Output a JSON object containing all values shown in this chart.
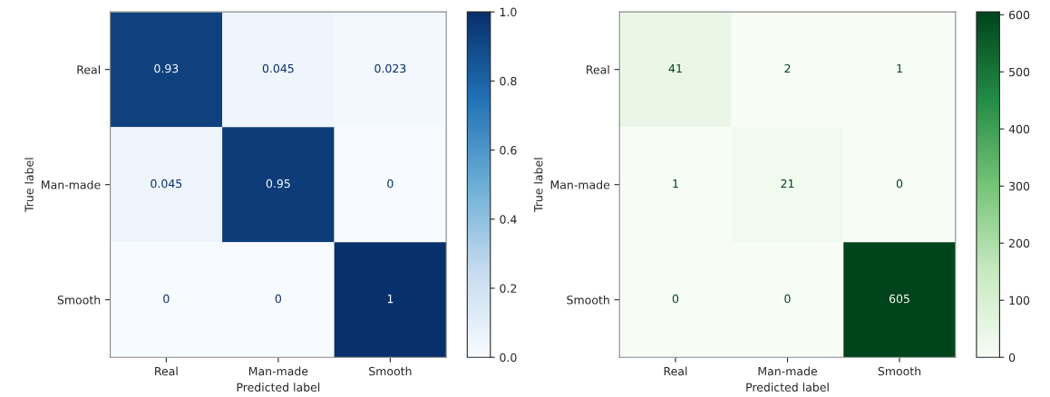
{
  "chart_data": [
    {
      "type": "heatmap",
      "xlabel": "Predicted label",
      "ylabel": "True label",
      "categories": [
        "Real",
        "Man-made",
        "Smooth"
      ],
      "y_categories": [
        "Real",
        "Man-made",
        "Smooth"
      ],
      "cells": [
        [
          0.93,
          0.045,
          0.023
        ],
        [
          0.045,
          0.95,
          0
        ],
        [
          0,
          0,
          1
        ]
      ],
      "data_labels": true,
      "colors": [
        "#f7fbff",
        "#c6dbef",
        "#6baed6",
        "#2171b5",
        "#08306b"
      ],
      "clim": [
        0,
        1
      ],
      "cticks": [
        {
          "value": 0,
          "label": "0.0"
        },
        0.2,
        0.4,
        0.6,
        0.8,
        {
          "value": 1,
          "label": "1.0"
        }
      ]
    },
    {
      "type": "heatmap",
      "xlabel": "Predicted label",
      "ylabel": "True label",
      "categories": [
        "Real",
        "Man-made",
        "Smooth"
      ],
      "y_categories": [
        "Real",
        "Man-made",
        "Smooth"
      ],
      "cells": [
        [
          41,
          2,
          1
        ],
        [
          1,
          21,
          0
        ],
        [
          0,
          0,
          605
        ]
      ],
      "data_labels": true,
      "colors": [
        "#f7fcf5",
        "#c7e9c0",
        "#74c476",
        "#238b45",
        "#00441b"
      ],
      "clim": [
        0,
        605
      ],
      "cticks": [
        0,
        100,
        200,
        300,
        400,
        500,
        600
      ]
    }
  ]
}
